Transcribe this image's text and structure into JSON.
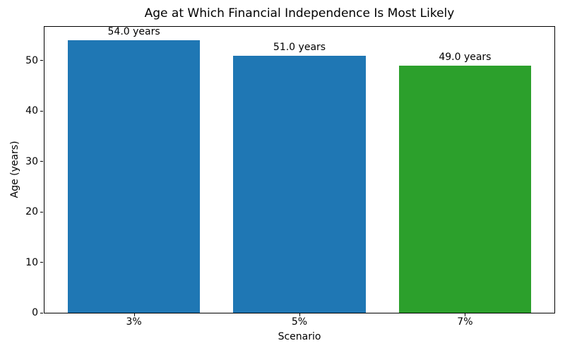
{
  "chart_data": {
    "type": "bar",
    "title": "Age at Which Financial Independence Is Most Likely",
    "xlabel": "Scenario",
    "ylabel": "Age (years)",
    "categories": [
      "3%",
      "5%",
      "7%"
    ],
    "values": [
      54.0,
      51.0,
      49.0
    ],
    "bar_labels": [
      "54.0 years",
      "51.0 years",
      "49.0 years"
    ],
    "bar_colors": [
      "#1f77b4",
      "#1f77b4",
      "#2ca02c"
    ],
    "units": "years",
    "ylim": [
      0,
      56.7
    ],
    "yticks": [
      0,
      10,
      20,
      30,
      40,
      50
    ],
    "grid": false,
    "legend": "none",
    "axis_color": "#000000",
    "background_color": "#ffffff"
  }
}
